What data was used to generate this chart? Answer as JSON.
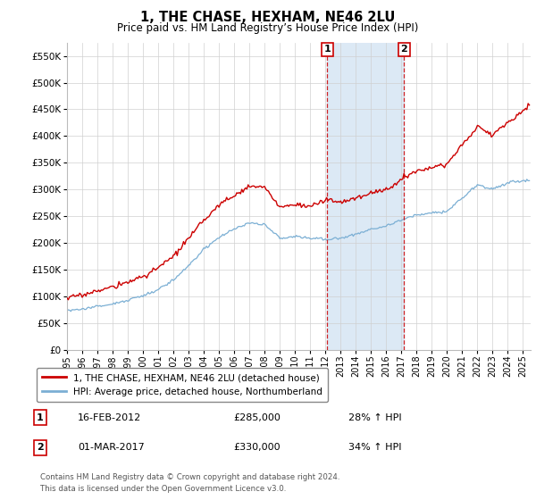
{
  "title": "1, THE CHASE, HEXHAM, NE46 2LU",
  "subtitle": "Price paid vs. HM Land Registry’s House Price Index (HPI)",
  "property_label": "1, THE CHASE, HEXHAM, NE46 2LU (detached house)",
  "hpi_label": "HPI: Average price, detached house, Northumberland",
  "transaction1_date": "16-FEB-2012",
  "transaction1_price": "£285,000",
  "transaction1_hpi": "28% ↑ HPI",
  "transaction2_date": "01-MAR-2017",
  "transaction2_price": "£330,000",
  "transaction2_hpi": "34% ↑ HPI",
  "footnote1": "Contains HM Land Registry data © Crown copyright and database right 2024.",
  "footnote2": "This data is licensed under the Open Government Licence v3.0.",
  "property_color": "#cc0000",
  "hpi_color": "#7bafd4",
  "highlight_color": "#dce9f5",
  "ylim_min": 0,
  "ylim_max": 575000,
  "yticks": [
    0,
    50000,
    100000,
    150000,
    200000,
    250000,
    300000,
    350000,
    400000,
    450000,
    500000,
    550000
  ],
  "transaction1_x": 2012.12,
  "transaction2_x": 2017.17,
  "xmin": 1995,
  "xmax": 2025.5,
  "hpi_control": [
    [
      1995.0,
      75000
    ],
    [
      1996,
      77000
    ],
    [
      1997,
      82000
    ],
    [
      1998,
      88000
    ],
    [
      1999,
      95000
    ],
    [
      2000,
      103000
    ],
    [
      2001,
      115000
    ],
    [
      2002,
      133000
    ],
    [
      2003,
      158000
    ],
    [
      2004,
      188000
    ],
    [
      2005,
      210000
    ],
    [
      2006,
      225000
    ],
    [
      2007,
      240000
    ],
    [
      2008,
      238000
    ],
    [
      2009,
      210000
    ],
    [
      2010,
      215000
    ],
    [
      2011,
      212000
    ],
    [
      2012,
      210000
    ],
    [
      2013,
      213000
    ],
    [
      2014,
      220000
    ],
    [
      2015,
      228000
    ],
    [
      2016,
      235000
    ],
    [
      2017,
      245000
    ],
    [
      2018,
      255000
    ],
    [
      2019,
      260000
    ],
    [
      2020,
      262000
    ],
    [
      2021,
      288000
    ],
    [
      2022,
      312000
    ],
    [
      2023,
      305000
    ],
    [
      2024,
      318000
    ],
    [
      2025.4,
      322000
    ]
  ],
  "prop_control_pre": [
    [
      1995.0,
      97000
    ],
    [
      1996,
      100000
    ],
    [
      1997,
      107000
    ],
    [
      1998,
      114000
    ],
    [
      1999,
      123000
    ],
    [
      2000,
      133000
    ],
    [
      2001,
      149000
    ],
    [
      2002,
      172000
    ],
    [
      2003,
      204000
    ],
    [
      2004,
      243000
    ],
    [
      2005,
      271000
    ],
    [
      2006,
      290000
    ],
    [
      2007,
      310000
    ],
    [
      2008,
      307000
    ],
    [
      2009,
      271000
    ],
    [
      2010,
      277000
    ],
    [
      2011,
      273000
    ],
    [
      2012.12,
      285000
    ]
  ],
  "prop_control_mid": [
    [
      2012.12,
      285000
    ],
    [
      2013,
      282000
    ],
    [
      2014,
      291000
    ],
    [
      2015,
      302000
    ],
    [
      2016,
      311000
    ],
    [
      2017.17,
      330000
    ]
  ],
  "prop_control_post": [
    [
      2017.17,
      330000
    ],
    [
      2018,
      345000
    ],
    [
      2019,
      351000
    ],
    [
      2020,
      354000
    ],
    [
      2021,
      388000
    ],
    [
      2022,
      420000
    ],
    [
      2023,
      405000
    ],
    [
      2024,
      428000
    ],
    [
      2025.0,
      450000
    ],
    [
      2025.4,
      460000
    ]
  ]
}
